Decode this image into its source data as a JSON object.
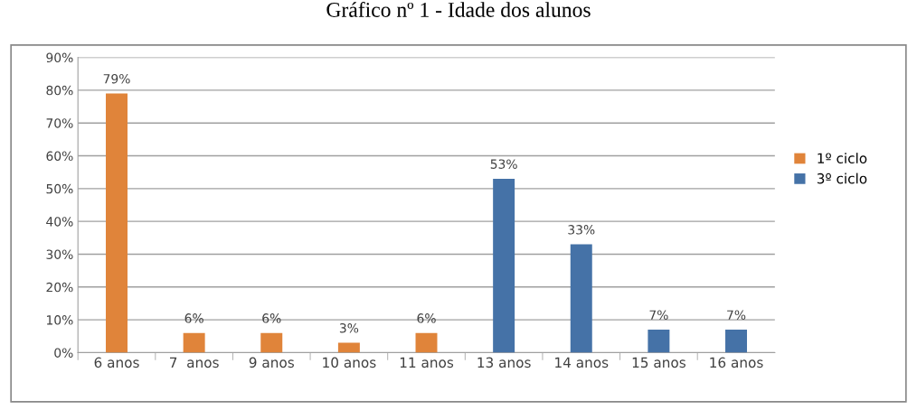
{
  "chart_data": {
    "type": "bar",
    "title": "Gráfico nº 1 - Idade dos alunos",
    "categories": [
      "6 anos",
      "7  anos",
      "9 anos",
      "10 anos",
      "11 anos",
      "13 anos",
      "14 anos",
      "15 anos",
      "16 anos"
    ],
    "series": [
      {
        "name": "1º ciclo",
        "color": "#e0843a",
        "values": [
          79,
          6,
          6,
          3,
          6,
          null,
          null,
          null,
          null
        ],
        "value_labels": [
          "79%",
          "6%",
          "6%",
          "3%",
          "6%",
          null,
          null,
          null,
          null
        ]
      },
      {
        "name": "3º ciclo",
        "color": "#4572a7",
        "values": [
          null,
          null,
          null,
          null,
          null,
          53,
          33,
          7,
          7
        ],
        "value_labels": [
          null,
          null,
          null,
          null,
          null,
          "53%",
          "33%",
          "7%",
          "7%"
        ]
      }
    ],
    "ylim": [
      0,
      90
    ],
    "yticks": [
      {
        "value": 0,
        "label": "0%"
      },
      {
        "value": 10,
        "label": "10%"
      },
      {
        "value": 20,
        "label": "20%"
      },
      {
        "value": 30,
        "label": "30%"
      },
      {
        "value": 40,
        "label": "40%"
      },
      {
        "value": 50,
        "label": "50%"
      },
      {
        "value": 60,
        "label": "60%"
      },
      {
        "value": 70,
        "label": "70%"
      },
      {
        "value": 80,
        "label": "80%"
      },
      {
        "value": 90,
        "label": "90%"
      }
    ],
    "grid": "y",
    "legend": "right"
  }
}
